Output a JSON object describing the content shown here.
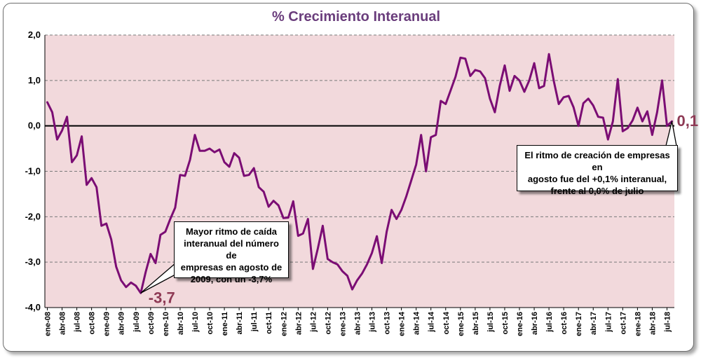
{
  "chart_data": {
    "type": "line",
    "title": "% Crecimiento Interanual",
    "xlabel": "",
    "ylabel": "",
    "ylim": [
      -4.0,
      2.0
    ],
    "yticks": [
      2.0,
      1.0,
      0.0,
      -1.0,
      -2.0,
      -3.0,
      -4.0
    ],
    "ytick_labels": [
      "2,0",
      "1,0",
      "0,0",
      "-1,0",
      "-2,0",
      "-3,0",
      "-4,0"
    ],
    "x_tick_labels": [
      "ene-08",
      "abr-08",
      "jul-08",
      "oct-08",
      "ene-09",
      "abr-09",
      "jul-09",
      "oct-09",
      "ene-10",
      "abr-10",
      "jul-10",
      "oct-10",
      "ene-11",
      "abr-11",
      "jul-11",
      "oct-11",
      "ene-12",
      "abr-12",
      "jul-12",
      "oct-12",
      "ene-13",
      "abr-13",
      "jul-13",
      "oct-13",
      "ene-14",
      "abr-14",
      "jul-14",
      "oct-14",
      "ene-15",
      "abr-15",
      "jul-15",
      "oct-15",
      "ene-16",
      "abr-16",
      "jul-16",
      "oct-16",
      "ene-17",
      "abr-17",
      "jul-17",
      "oct-17",
      "ene-18",
      "abr-18",
      "jul-18"
    ],
    "grid": "horizontal dashed",
    "colors": {
      "line": "#7b0d74",
      "plot_bg": "#f2d9dc",
      "zero_line": "#000000",
      "data_label": "#8e3a55",
      "title": "#6a3d7c"
    },
    "series": [
      {
        "values": [
          0.52,
          0.3,
          -0.3,
          -0.1,
          0.2,
          -0.8,
          -0.65,
          -0.23,
          -1.3,
          -1.15,
          -1.35,
          -2.2,
          -2.15,
          -2.5,
          -3.1,
          -3.4,
          -3.55,
          -3.45,
          -3.52,
          -3.68,
          -3.22,
          -2.82,
          -3.02,
          -2.4,
          -2.33,
          -2.05,
          -1.8,
          -1.08,
          -1.1,
          -0.75,
          -0.2,
          -0.55,
          -0.55,
          -0.5,
          -0.58,
          -0.52,
          -0.8,
          -0.9,
          -0.6,
          -0.7,
          -1.1,
          -1.08,
          -0.93,
          -1.35,
          -1.45,
          -1.78,
          -1.65,
          -1.75,
          -2.03,
          -2.02,
          -1.66,
          -2.42,
          -2.37,
          -2.05,
          -3.15,
          -2.7,
          -2.2,
          -2.93,
          -3.0,
          -3.05,
          -3.2,
          -3.3,
          -3.6,
          -3.4,
          -3.25,
          -3.05,
          -2.8,
          -2.43,
          -3.02,
          -2.33,
          -1.85,
          -2.05,
          -1.85,
          -1.55,
          -1.2,
          -0.85,
          -0.2,
          -1.0,
          -0.25,
          -0.2,
          0.55,
          0.48,
          0.78,
          1.08,
          1.5,
          1.48,
          1.1,
          1.23,
          1.2,
          1.05,
          0.6,
          0.3,
          0.88,
          1.33,
          0.77,
          1.1,
          1.0,
          0.75,
          1.0,
          1.38,
          0.83,
          0.88,
          1.58,
          0.98,
          0.48,
          0.63,
          0.66,
          0.41,
          0.0,
          0.5,
          0.6,
          0.45,
          0.2,
          0.18,
          -0.3,
          0.1,
          1.03,
          -0.12,
          -0.05,
          0.12,
          0.4,
          0.1,
          0.32,
          -0.2,
          0.3,
          1.0,
          0.0,
          0.1
        ]
      }
    ],
    "data_labels": [
      {
        "index": 19,
        "text": "-3,7"
      },
      {
        "index": 127,
        "text": "0,1"
      }
    ],
    "annotations": [
      {
        "id": "min",
        "text": "Mayor ritmo de caída\ninteranual del número de\nempresas en agosto de\n2009, con un -3,7%",
        "target_index": 19
      },
      {
        "id": "last",
        "text": "El ritmo de creación de empresas en\nagosto fue del +0,1% interanual,\nfrente al 0,0% de julio",
        "target_index": 127
      }
    ]
  }
}
